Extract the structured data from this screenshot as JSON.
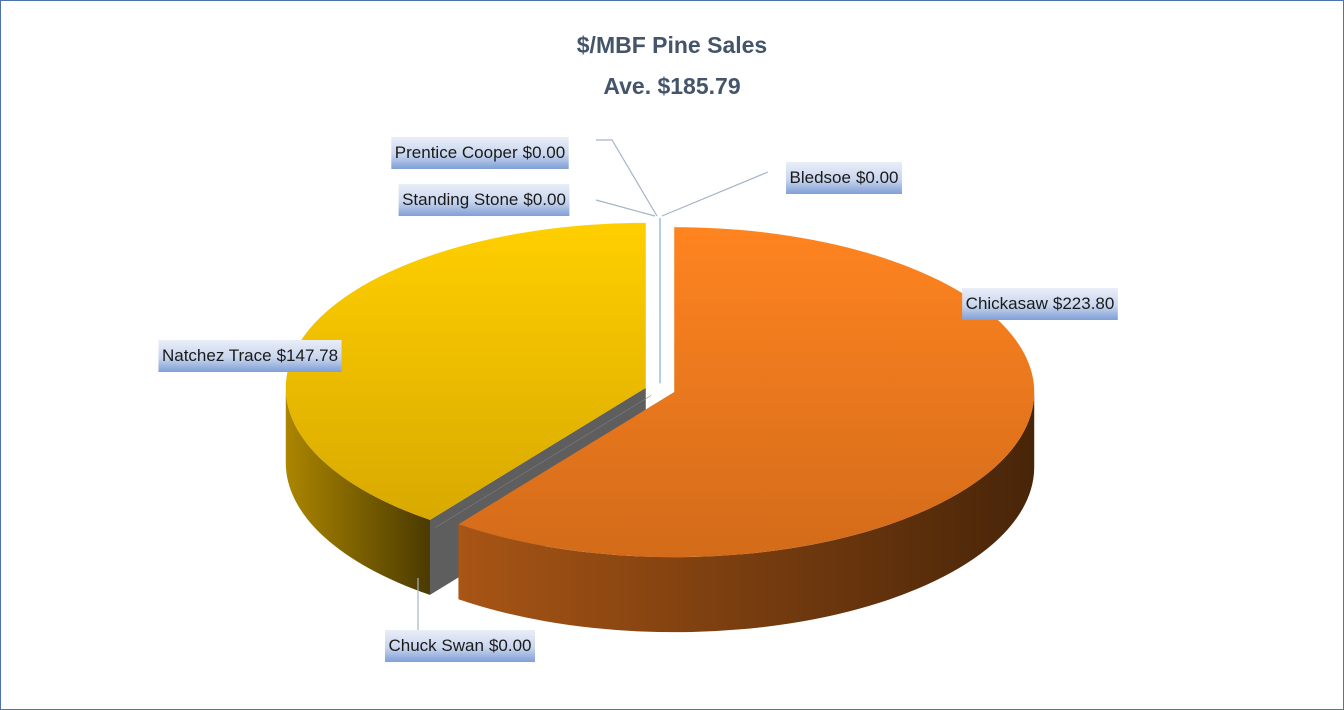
{
  "chart_data": {
    "type": "pie",
    "title": "$/MBF Pine Sales",
    "subtitle": "Ave. $185.79",
    "categories": [
      "Chickasaw",
      "Chuck Swan",
      "Natchez Trace",
      "Standing Stone",
      "Prentice Cooper",
      "Bledsoe"
    ],
    "values": [
      223.8,
      0,
      147.78,
      0,
      0,
      0
    ],
    "value_labels": [
      "$223.80",
      "$0.00",
      "$147.78",
      "$0.00",
      "$0.00",
      "$0.00"
    ],
    "colors": [
      "#f07a1e",
      "#7f7f7f",
      "#f5c000",
      "#4472c4",
      "#a5a5a5",
      "#5b9bd5"
    ]
  }
}
